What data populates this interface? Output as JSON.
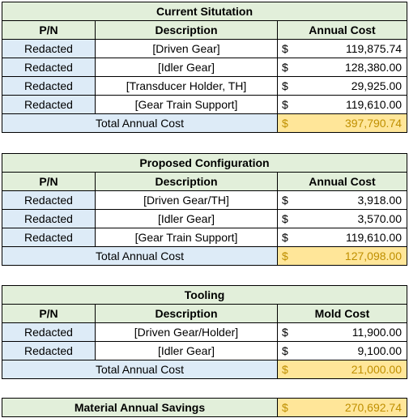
{
  "sections": [
    {
      "title": "Current Situtation",
      "headers": [
        "P/N",
        "Description",
        "Annual Cost"
      ],
      "rows": [
        [
          "Redacted",
          "[Driven Gear]",
          "119,875.74"
        ],
        [
          "Redacted",
          "[Idler Gear]",
          "128,380.00"
        ],
        [
          "Redacted",
          "[Transducer Holder, TH]",
          "29,925.00"
        ],
        [
          "Redacted",
          "[Gear Train Support]",
          "119,610.00"
        ]
      ],
      "total_label": "Total Annual Cost",
      "total": "397,790.74"
    },
    {
      "title": "Proposed Configuration",
      "headers": [
        "P/N",
        "Description",
        "Annual Cost"
      ],
      "rows": [
        [
          "Redacted",
          "[Driven Gear/TH]",
          "3,918.00"
        ],
        [
          "Redacted",
          "[Idler Gear]",
          "3,570.00"
        ],
        [
          "Redacted",
          "[Gear Train Support]",
          "119,610.00"
        ]
      ],
      "total_label": "Total Annual Cost",
      "total": "127,098.00"
    },
    {
      "title": "Tooling",
      "headers": [
        "P/N",
        "Description",
        "Mold Cost"
      ],
      "rows": [
        [
          "Redacted",
          "[Driven Gear/Holder]",
          "11,900.00"
        ],
        [
          "Redacted",
          "[Idler Gear]",
          "9,100.00"
        ]
      ],
      "total_label": "Total Annual Cost",
      "total": "21,000.00"
    }
  ],
  "currency": "$",
  "savings": {
    "label": "Material Annual Savings",
    "value": "270,692.74"
  }
}
